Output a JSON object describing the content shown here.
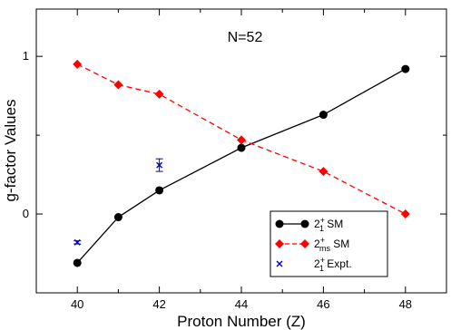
{
  "chart_data": {
    "type": "line",
    "title": "N=52",
    "xlabel": "Proton Number (Z)",
    "ylabel": "g-factor Values",
    "xlim": [
      39,
      49
    ],
    "ylim": [
      -0.5,
      1.3
    ],
    "xticks": [
      40,
      42,
      44,
      46,
      48
    ],
    "yticks": [
      0,
      1
    ],
    "xtick_labels": [
      "40",
      "42",
      "44",
      "46",
      "48"
    ],
    "ytick_labels": [
      "0",
      "1"
    ],
    "grid": false,
    "legend_position": "bottom-right",
    "series": [
      {
        "name_main": "2",
        "name_sup": "+",
        "name_sub": "1",
        "name_tail": " SM",
        "color": "#000000",
        "marker": "circle",
        "line": "solid",
        "x": [
          40,
          41,
          42,
          44,
          46,
          48
        ],
        "y": [
          -0.31,
          -0.02,
          0.15,
          0.42,
          0.63,
          0.92
        ]
      },
      {
        "name_main": "2",
        "name_sup": "+",
        "name_sub": "ms",
        "name_tail": " SM",
        "color": "#ff0000",
        "marker": "diamond",
        "line": "dashed",
        "x": [
          40,
          41,
          42,
          44,
          46,
          48
        ],
        "y": [
          0.95,
          0.82,
          0.76,
          0.47,
          0.27,
          0.0
        ]
      },
      {
        "name_main": "2",
        "name_sup": "+",
        "name_sub": "1",
        "name_tail": " Expt.",
        "color": "#0000cc",
        "marker": "x",
        "line": "none",
        "x": [
          40,
          42
        ],
        "y": [
          -0.18,
          0.31
        ],
        "err": [
          0.01,
          0.04
        ]
      }
    ]
  }
}
